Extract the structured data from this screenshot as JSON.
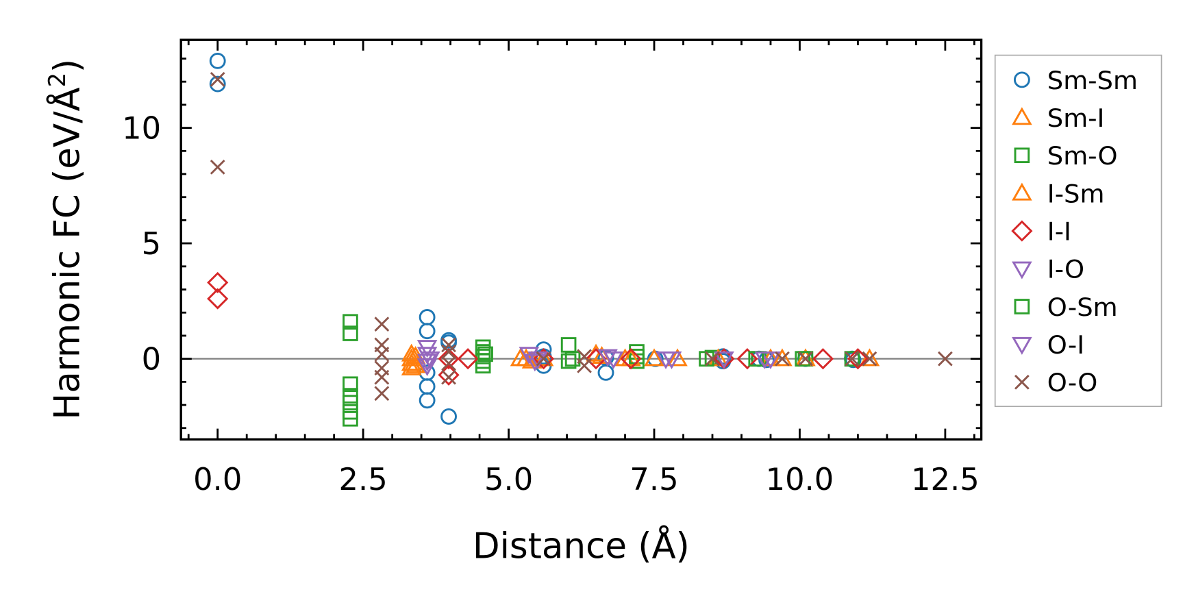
{
  "chart_data": {
    "type": "scatter",
    "title": "",
    "xlabel": "Distance (Å)",
    "ylabel": "Harmonic FC (eV/Å²)",
    "ylabel_main": "Harmonic FC (eV/Å",
    "ylabel_sup": "2",
    "ylabel_end": ")",
    "xlim": [
      -0.63,
      13.12
    ],
    "ylim": [
      -3.49,
      13.81
    ],
    "xticks": [
      0.0,
      2.5,
      5.0,
      7.5,
      10.0,
      12.5
    ],
    "xtick_labels": [
      "0.0",
      "2.5",
      "5.0",
      "7.5",
      "10.0",
      "12.5"
    ],
    "yticks": [
      0,
      5,
      10
    ],
    "ytick_labels": [
      "0",
      "5",
      "10"
    ],
    "grid": false,
    "zero_line": true,
    "legend_position": "outside-right",
    "series": [
      {
        "name": "Sm-Sm",
        "color": "#1f77b4",
        "marker": "circle",
        "x": [
          0,
          0,
          3.6,
          3.6,
          3.6,
          3.6,
          3.6,
          3.97,
          3.97,
          3.97,
          5.6,
          5.6,
          5.6,
          6.67,
          6.67,
          7.52,
          8.68,
          8.68,
          9.3,
          9.43,
          10.1,
          10.9,
          10.92
        ],
        "y": [
          12.9,
          11.9,
          1.8,
          1.2,
          -0.6,
          -1.2,
          -1.8,
          0.8,
          0.7,
          -2.5,
          0.4,
          0.1,
          -0.3,
          -0.6,
          0.05,
          0,
          0.1,
          -0.1,
          0,
          -0.05,
          0,
          0,
          -0.05
        ]
      },
      {
        "name": "Sm-I",
        "color": "#ff7f0e",
        "marker": "triangle-up",
        "x": [
          3.33,
          3.33,
          3.33,
          3.33,
          5.3,
          5.4,
          6.6,
          7.0,
          7.5,
          9.7,
          11.2
        ],
        "y": [
          0.2,
          0,
          -0.2,
          -0.4,
          0,
          -0.1,
          0.1,
          0,
          0,
          0,
          0
        ]
      },
      {
        "name": "Sm-O",
        "color": "#2ca02c",
        "marker": "square",
        "x": [
          2.28,
          2.28,
          2.28,
          2.28,
          2.28,
          2.28,
          2.28,
          4.56,
          4.56,
          4.56,
          4.56,
          4.56,
          6.03,
          6.03,
          7.2,
          7.2,
          7.2,
          8.5,
          9.3,
          10.1,
          10.9
        ],
        "y": [
          1.6,
          1.1,
          -1.1,
          -1.6,
          -1.9,
          -2.3,
          -2.6,
          0.5,
          0.3,
          0.1,
          -0.1,
          -0.3,
          0.6,
          -0.1,
          0.3,
          0.1,
          -0.1,
          0.05,
          0,
          0,
          0
        ]
      },
      {
        "name": "I-Sm",
        "color": "#ff7f0e",
        "marker": "triangle-up",
        "x": [
          3.4,
          3.4,
          5.2,
          5.6,
          6.5,
          7.1,
          7.9,
          8.6,
          9.5,
          10.1
        ],
        "y": [
          0.1,
          -0.3,
          0,
          0,
          0.2,
          0,
          0,
          0,
          0,
          0
        ]
      },
      {
        "name": "I-I",
        "color": "#d62728",
        "marker": "diamond",
        "x": [
          0,
          0,
          3.97,
          3.97,
          4.3,
          5.6,
          6.5,
          7.1,
          8.7,
          9.1,
          10.4,
          11.0
        ],
        "y": [
          3.3,
          2.6,
          0,
          -0.7,
          0,
          0,
          0,
          0,
          0,
          0,
          0,
          0
        ]
      },
      {
        "name": "I-O",
        "color": "#9467bd",
        "marker": "triangle-down",
        "x": [
          3.6,
          3.6,
          3.6,
          3.6,
          5.35,
          5.45,
          6.7,
          7.8,
          8.7,
          9.5
        ],
        "y": [
          0.5,
          0.2,
          -0.1,
          -0.3,
          0.2,
          -0.1,
          0.1,
          0,
          0,
          0
        ]
      },
      {
        "name": "O-Sm",
        "color": "#2ca02c",
        "marker": "square",
        "x": [
          4.6,
          6.1,
          8.4,
          9.25,
          10.05
        ],
        "y": [
          0.2,
          0,
          0,
          0,
          0
        ]
      },
      {
        "name": "O-I",
        "color": "#9467bd",
        "marker": "triangle-down",
        "x": [
          3.65,
          5.5,
          6.8,
          7.7,
          9.4
        ],
        "y": [
          0,
          0,
          0,
          0,
          0
        ]
      },
      {
        "name": "O-O",
        "color": "#8c564b",
        "marker": "x",
        "x": [
          0,
          0,
          2.82,
          2.82,
          2.82,
          2.82,
          2.82,
          2.82,
          3.97,
          3.97,
          3.97,
          3.97,
          5.6,
          6.3,
          6.3,
          8.5,
          9.7,
          10.1,
          10.9,
          11.2,
          12.5
        ],
        "y": [
          12.1,
          8.3,
          1.5,
          0.6,
          0.2,
          -0.4,
          -0.8,
          -1.5,
          0.6,
          0.3,
          -0.2,
          -0.8,
          0,
          0.1,
          -0.3,
          0,
          0,
          0,
          0,
          0,
          0
        ]
      }
    ]
  }
}
